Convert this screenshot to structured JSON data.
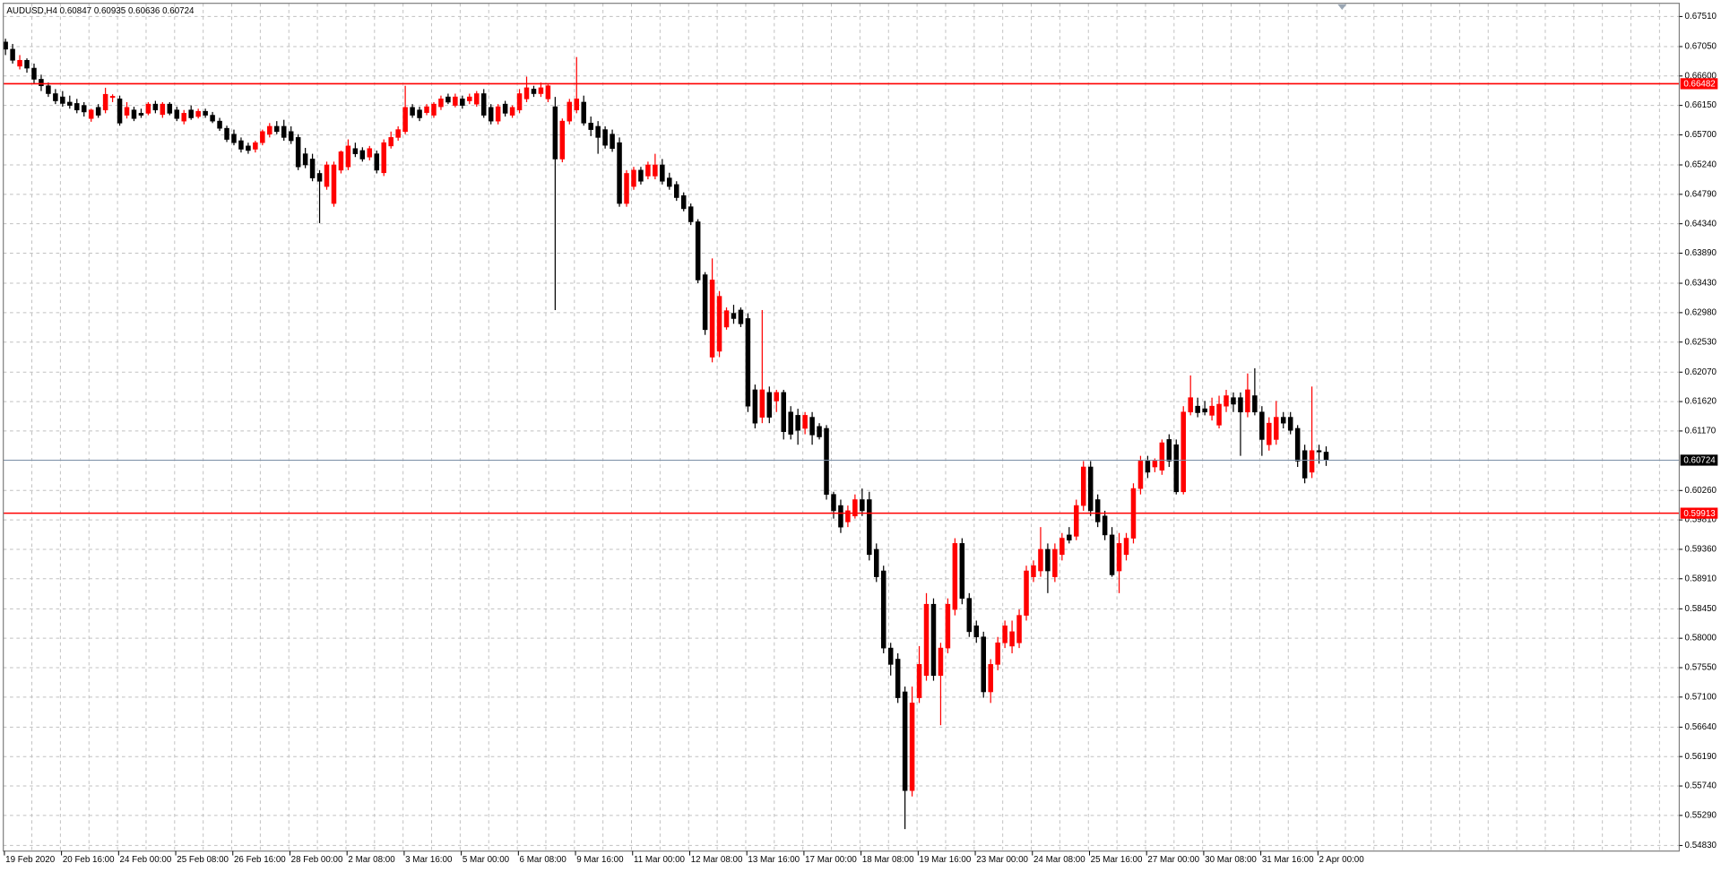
{
  "chart_data": {
    "type": "candlestick",
    "title": "AUDUSD,H4  0.60847 0.60935 0.60636 0.60724",
    "categories": [
      "19 Feb 2020",
      null,
      null,
      null,
      null,
      null,
      null,
      null,
      "20 Feb 16:00",
      null,
      null,
      null,
      null,
      null,
      null,
      null,
      "24 Feb 00:00",
      null,
      null,
      null,
      null,
      null,
      null,
      null,
      "25 Feb 08:00",
      null,
      null,
      null,
      null,
      null,
      null,
      null,
      "26 Feb 16:00",
      null,
      null,
      null,
      null,
      null,
      null,
      null,
      "28 Feb 00:00",
      null,
      null,
      null,
      null,
      null,
      null,
      null,
      "2 Mar 08:00",
      null,
      null,
      null,
      null,
      null,
      null,
      null,
      "3 Mar 16:00",
      null,
      null,
      null,
      null,
      null,
      null,
      null,
      "5 Mar 00:00",
      null,
      null,
      null,
      null,
      null,
      null,
      null,
      "6 Mar 08:00",
      null,
      null,
      null,
      null,
      null,
      null,
      null,
      "9 Mar 16:00",
      null,
      null,
      null,
      null,
      null,
      null,
      null,
      "11 Mar 00:00",
      null,
      null,
      null,
      null,
      null,
      null,
      null,
      "12 Mar 08:00",
      null,
      null,
      null,
      null,
      null,
      null,
      null,
      "13 Mar 16:00",
      null,
      null,
      null,
      null,
      null,
      null,
      null,
      "17 Mar 00:00",
      null,
      null,
      null,
      null,
      null,
      null,
      null,
      "18 Mar 08:00",
      null,
      null,
      null,
      null,
      null,
      null,
      null,
      "19 Mar 16:00",
      null,
      null,
      null,
      null,
      null,
      null,
      null,
      "23 Mar 00:00",
      null,
      null,
      null,
      null,
      null,
      null,
      null,
      "24 Mar 08:00",
      null,
      null,
      null,
      null,
      null,
      null,
      null,
      "25 Mar 16:00",
      null,
      null,
      null,
      null,
      null,
      null,
      null,
      "27 Mar 00:00",
      null,
      null,
      null,
      null,
      null,
      null,
      null,
      "30 Mar 08:00",
      null,
      null,
      null,
      null,
      null,
      null,
      null,
      "31 Mar 16:00",
      null,
      null,
      null,
      null,
      null,
      null,
      null,
      "2 Apr 00:00",
      null
    ],
    "ohlc": [
      [
        0.6712,
        0.6717,
        0.6692,
        0.6701
      ],
      [
        0.6701,
        0.6709,
        0.6679,
        0.6684
      ],
      [
        0.6675,
        0.6692,
        0.667,
        0.6684
      ],
      [
        0.6684,
        0.6687,
        0.6665,
        0.6672
      ],
      [
        0.6672,
        0.6679,
        0.6648,
        0.6655
      ],
      [
        0.6655,
        0.6662,
        0.6637,
        0.6645
      ],
      [
        0.6645,
        0.665,
        0.6628,
        0.6633
      ],
      [
        0.6633,
        0.664,
        0.6617,
        0.6622
      ],
      [
        0.6628,
        0.6637,
        0.6613,
        0.6618
      ],
      [
        0.662,
        0.663,
        0.661,
        0.6615
      ],
      [
        0.6618,
        0.6625,
        0.6603,
        0.6608
      ],
      [
        0.6615,
        0.662,
        0.6598,
        0.6605
      ],
      [
        0.6595,
        0.661,
        0.659,
        0.6608
      ],
      [
        0.6612,
        0.6617,
        0.6596,
        0.66
      ],
      [
        0.6608,
        0.6642,
        0.6603,
        0.6632
      ],
      [
        0.6627,
        0.6632,
        0.662,
        0.6629
      ],
      [
        0.6625,
        0.663,
        0.6584,
        0.6588
      ],
      [
        0.66,
        0.662,
        0.6595,
        0.6612
      ],
      [
        0.6608,
        0.6613,
        0.6591,
        0.6595
      ],
      [
        0.6603,
        0.661,
        0.6596,
        0.66
      ],
      [
        0.6603,
        0.662,
        0.66,
        0.6617
      ],
      [
        0.6617,
        0.6622,
        0.6603,
        0.6608
      ],
      [
        0.6601,
        0.662,
        0.6596,
        0.6617
      ],
      [
        0.6617,
        0.662,
        0.66,
        0.6603
      ],
      [
        0.6608,
        0.6613,
        0.6591,
        0.6595
      ],
      [
        0.6591,
        0.6608,
        0.6586,
        0.6603
      ],
      [
        0.6608,
        0.6615,
        0.6593,
        0.6596
      ],
      [
        0.6598,
        0.661,
        0.6595,
        0.6606
      ],
      [
        0.6606,
        0.661,
        0.6596,
        0.66
      ],
      [
        0.66,
        0.6605,
        0.6588,
        0.6591
      ],
      [
        0.6591,
        0.6596,
        0.6576,
        0.658
      ],
      [
        0.658,
        0.6584,
        0.6559,
        0.6563
      ],
      [
        0.6571,
        0.6578,
        0.6554,
        0.6558
      ],
      [
        0.6561,
        0.6566,
        0.6543,
        0.6548
      ],
      [
        0.6553,
        0.6558,
        0.6541,
        0.6546
      ],
      [
        0.6548,
        0.6561,
        0.6543,
        0.6558
      ],
      [
        0.6558,
        0.6578,
        0.6554,
        0.6575
      ],
      [
        0.6571,
        0.6588,
        0.6566,
        0.6583
      ],
      [
        0.6583,
        0.6591,
        0.6571,
        0.6575
      ],
      [
        0.6583,
        0.6593,
        0.6561,
        0.6566
      ],
      [
        0.6575,
        0.6583,
        0.6556,
        0.6561
      ],
      [
        0.6566,
        0.6571,
        0.6516,
        0.6521
      ],
      [
        0.6541,
        0.655,
        0.6519,
        0.6524
      ],
      [
        0.6533,
        0.6541,
        0.6499,
        0.6504
      ],
      [
        0.6511,
        0.6516,
        0.6435,
        0.6499
      ],
      [
        0.6491,
        0.6529,
        0.6486,
        0.6524
      ],
      [
        0.6465,
        0.6529,
        0.646,
        0.6524
      ],
      [
        0.6516,
        0.6546,
        0.6511,
        0.6544
      ],
      [
        0.6521,
        0.6563,
        0.6516,
        0.6553
      ],
      [
        0.6549,
        0.6558,
        0.6536,
        0.6541
      ],
      [
        0.6546,
        0.6551,
        0.6529,
        0.6533
      ],
      [
        0.6536,
        0.6553,
        0.6531,
        0.6549
      ],
      [
        0.6541,
        0.6546,
        0.6511,
        0.6516
      ],
      [
        0.6512,
        0.6563,
        0.6507,
        0.6558
      ],
      [
        0.6553,
        0.6575,
        0.6549,
        0.6566
      ],
      [
        0.6566,
        0.6583,
        0.6561,
        0.6578
      ],
      [
        0.6575,
        0.6645,
        0.6571,
        0.6612
      ],
      [
        0.6612,
        0.6617,
        0.6596,
        0.66
      ],
      [
        0.6608,
        0.6613,
        0.6591,
        0.6596
      ],
      [
        0.6604,
        0.6617,
        0.66,
        0.6613
      ],
      [
        0.66,
        0.662,
        0.6596,
        0.6617
      ],
      [
        0.6613,
        0.663,
        0.6608,
        0.6625
      ],
      [
        0.6628,
        0.6633,
        0.6617,
        0.662
      ],
      [
        0.6615,
        0.6633,
        0.6612,
        0.6628
      ],
      [
        0.6625,
        0.663,
        0.661,
        0.6615
      ],
      [
        0.6622,
        0.6633,
        0.6617,
        0.6628
      ],
      [
        0.6617,
        0.6637,
        0.6613,
        0.6633
      ],
      [
        0.6633,
        0.664,
        0.6596,
        0.66
      ],
      [
        0.6612,
        0.6617,
        0.6586,
        0.6591
      ],
      [
        0.6591,
        0.6617,
        0.6586,
        0.6613
      ],
      [
        0.6617,
        0.6622,
        0.6598,
        0.6603
      ],
      [
        0.66,
        0.6615,
        0.6596,
        0.6612
      ],
      [
        0.6608,
        0.664,
        0.6603,
        0.6633
      ],
      [
        0.6625,
        0.6659,
        0.662,
        0.6642
      ],
      [
        0.664,
        0.6645,
        0.6628,
        0.6633
      ],
      [
        0.6633,
        0.665,
        0.6628,
        0.6642
      ],
      [
        0.6625,
        0.6647,
        0.662,
        0.6645
      ],
      [
        0.6613,
        0.6628,
        0.6302,
        0.6533
      ],
      [
        0.6533,
        0.6595,
        0.6528,
        0.6591
      ],
      [
        0.6591,
        0.6625,
        0.6586,
        0.662
      ],
      [
        0.6608,
        0.6689,
        0.6603,
        0.6625
      ],
      [
        0.662,
        0.663,
        0.6584,
        0.6588
      ],
      [
        0.6588,
        0.6598,
        0.6568,
        0.6578
      ],
      [
        0.6583,
        0.6591,
        0.6541,
        0.6566
      ],
      [
        0.6578,
        0.6583,
        0.6549,
        0.6554
      ],
      [
        0.6571,
        0.6578,
        0.6544,
        0.6549
      ],
      [
        0.6558,
        0.6566,
        0.646,
        0.6465
      ],
      [
        0.6465,
        0.6516,
        0.646,
        0.6511
      ],
      [
        0.6491,
        0.6521,
        0.6486,
        0.6516
      ],
      [
        0.6516,
        0.6521,
        0.6494,
        0.6499
      ],
      [
        0.6507,
        0.6529,
        0.6502,
        0.6524
      ],
      [
        0.6507,
        0.6541,
        0.6502,
        0.6524
      ],
      [
        0.6524,
        0.6533,
        0.6494,
        0.6499
      ],
      [
        0.6504,
        0.6512,
        0.6486,
        0.6491
      ],
      [
        0.6494,
        0.6499,
        0.6469,
        0.6474
      ],
      [
        0.6477,
        0.6482,
        0.6453,
        0.6457
      ],
      [
        0.646,
        0.6465,
        0.6432,
        0.6437
      ],
      [
        0.6437,
        0.6441,
        0.6343,
        0.6348
      ],
      [
        0.6356,
        0.636,
        0.6264,
        0.6272
      ],
      [
        0.623,
        0.6381,
        0.6222,
        0.6348
      ],
      [
        0.6239,
        0.6331,
        0.623,
        0.6323
      ],
      [
        0.6276,
        0.6306,
        0.6272,
        0.6301
      ],
      [
        0.6297,
        0.631,
        0.6281,
        0.6289
      ],
      [
        0.6302,
        0.6306,
        0.6276,
        0.6281
      ],
      [
        0.6289,
        0.6297,
        0.6146,
        0.6155
      ],
      [
        0.618,
        0.6188,
        0.6121,
        0.6129
      ],
      [
        0.6138,
        0.6302,
        0.6129,
        0.618
      ],
      [
        0.6176,
        0.6185,
        0.6129,
        0.6138
      ],
      [
        0.6163,
        0.618,
        0.6146,
        0.6176
      ],
      [
        0.6176,
        0.618,
        0.6104,
        0.6116
      ],
      [
        0.6146,
        0.6155,
        0.6104,
        0.6112
      ],
      [
        0.6141,
        0.6151,
        0.6096,
        0.6118
      ],
      [
        0.6121,
        0.6146,
        0.6112,
        0.6141
      ],
      [
        0.6138,
        0.6146,
        0.6096,
        0.6111
      ],
      [
        0.6124,
        0.6129,
        0.6104,
        0.6108
      ],
      [
        0.6121,
        0.6126,
        0.6012,
        0.602
      ],
      [
        0.602,
        0.6024,
        0.5983,
        0.5995
      ],
      [
        0.6003,
        0.6012,
        0.5961,
        0.597
      ],
      [
        0.5978,
        0.6003,
        0.597,
        0.5995
      ],
      [
        0.5987,
        0.602,
        0.5983,
        0.6012
      ],
      [
        0.6012,
        0.6029,
        0.5987,
        0.5995
      ],
      [
        0.6012,
        0.6024,
        0.5919,
        0.5928
      ],
      [
        0.5936,
        0.5945,
        0.5886,
        0.5894
      ],
      [
        0.5903,
        0.5911,
        0.5777,
        0.5785
      ],
      [
        0.5785,
        0.5793,
        0.5743,
        0.576
      ],
      [
        0.5768,
        0.5777,
        0.5701,
        0.5709
      ],
      [
        0.5718,
        0.5726,
        0.5508,
        0.5567
      ],
      [
        0.5567,
        0.5726,
        0.5558,
        0.5701
      ],
      [
        0.5709,
        0.5788,
        0.5701,
        0.576
      ],
      [
        0.5743,
        0.5869,
        0.5735,
        0.5852
      ],
      [
        0.5852,
        0.5861,
        0.5735,
        0.5743
      ],
      [
        0.5743,
        0.5793,
        0.5667,
        0.5785
      ],
      [
        0.5785,
        0.5861,
        0.5777,
        0.5852
      ],
      [
        0.5844,
        0.5953,
        0.5835,
        0.5945
      ],
      [
        0.5945,
        0.5953,
        0.5852,
        0.5861
      ],
      [
        0.5861,
        0.5869,
        0.5802,
        0.581
      ],
      [
        0.5819,
        0.5827,
        0.5793,
        0.5802
      ],
      [
        0.5802,
        0.581,
        0.5709,
        0.5718
      ],
      [
        0.5718,
        0.5768,
        0.5701,
        0.576
      ],
      [
        0.576,
        0.5802,
        0.5751,
        0.5793
      ],
      [
        0.5793,
        0.5827,
        0.5785,
        0.5819
      ],
      [
        0.5788,
        0.5827,
        0.5777,
        0.581
      ],
      [
        0.5793,
        0.5844,
        0.5785,
        0.5835
      ],
      [
        0.5835,
        0.5911,
        0.5827,
        0.5903
      ],
      [
        0.5894,
        0.5919,
        0.5886,
        0.5911
      ],
      [
        0.5903,
        0.597,
        0.5894,
        0.5936
      ],
      [
        0.5936,
        0.5945,
        0.5869,
        0.5903
      ],
      [
        0.5894,
        0.5945,
        0.5886,
        0.5936
      ],
      [
        0.5928,
        0.5961,
        0.5919,
        0.5953
      ],
      [
        0.5958,
        0.597,
        0.5945,
        0.595
      ],
      [
        0.5956,
        0.6012,
        0.595,
        0.6003
      ],
      [
        0.6003,
        0.6071,
        0.5995,
        0.6062
      ],
      [
        0.6062,
        0.6071,
        0.5987,
        0.5995
      ],
      [
        0.6012,
        0.602,
        0.597,
        0.5978
      ],
      [
        0.5987,
        0.5995,
        0.595,
        0.5958
      ],
      [
        0.5958,
        0.597,
        0.5894,
        0.5897
      ],
      [
        0.5903,
        0.5961,
        0.5869,
        0.5945
      ],
      [
        0.5928,
        0.5961,
        0.5919,
        0.5953
      ],
      [
        0.5953,
        0.6037,
        0.5945,
        0.6029
      ],
      [
        0.6029,
        0.6079,
        0.602,
        0.6071
      ],
      [
        0.6071,
        0.6079,
        0.6045,
        0.6054
      ],
      [
        0.6062,
        0.6075,
        0.6054,
        0.6071
      ],
      [
        0.6057,
        0.6104,
        0.605,
        0.6099
      ],
      [
        0.6104,
        0.6112,
        0.6062,
        0.6071
      ],
      [
        0.6096,
        0.6104,
        0.602,
        0.6024
      ],
      [
        0.6024,
        0.6155,
        0.602,
        0.6146
      ],
      [
        0.6146,
        0.6202,
        0.6141,
        0.6168
      ],
      [
        0.6155,
        0.6168,
        0.6138,
        0.6145
      ],
      [
        0.6151,
        0.6163,
        0.6141,
        0.6146
      ],
      [
        0.6141,
        0.6168,
        0.6133,
        0.6155
      ],
      [
        0.6126,
        0.6171,
        0.6121,
        0.6158
      ],
      [
        0.6155,
        0.618,
        0.6146,
        0.6171
      ],
      [
        0.6168,
        0.6176,
        0.6146,
        0.6158
      ],
      [
        0.6168,
        0.6176,
        0.6079,
        0.6146
      ],
      [
        0.6146,
        0.6205,
        0.6138,
        0.618
      ],
      [
        0.6171,
        0.6213,
        0.6141,
        0.6146
      ],
      [
        0.6146,
        0.6155,
        0.6079,
        0.6104
      ],
      [
        0.6096,
        0.6138,
        0.6087,
        0.6129
      ],
      [
        0.6104,
        0.6163,
        0.6096,
        0.6138
      ],
      [
        0.6138,
        0.6146,
        0.6121,
        0.6129
      ],
      [
        0.6138,
        0.6146,
        0.6112,
        0.6118
      ],
      [
        0.6121,
        0.6126,
        0.6062,
        0.6071
      ],
      [
        0.6087,
        0.6096,
        0.6037,
        0.6045
      ],
      [
        0.6054,
        0.6185,
        0.6045,
        0.6087
      ],
      [
        0.6087,
        0.6096,
        0.6067,
        0.6085
      ],
      [
        0.60847,
        0.60935,
        0.60636,
        0.60724
      ]
    ],
    "up_color": "#ff0000",
    "down_color": "#000000",
    "ylim": [
      0.54745,
      0.67712
    ],
    "yticks": [
      {
        "value": 0.6751,
        "label": "0.67510"
      },
      {
        "value": 0.6705,
        "label": "0.67050"
      },
      {
        "value": 0.666,
        "label": "0.66600"
      },
      {
        "value": 0.6615,
        "label": "0.66150"
      },
      {
        "value": 0.657,
        "label": "0.65700"
      },
      {
        "value": 0.6524,
        "label": "0.65240"
      },
      {
        "value": 0.6479,
        "label": "0.64790"
      },
      {
        "value": 0.6434,
        "label": "0.64340"
      },
      {
        "value": 0.6389,
        "label": "0.63890"
      },
      {
        "value": 0.6343,
        "label": "0.63430"
      },
      {
        "value": 0.6298,
        "label": "0.62980"
      },
      {
        "value": 0.6253,
        "label": "0.62530"
      },
      {
        "value": 0.6207,
        "label": "0.62070"
      },
      {
        "value": 0.6162,
        "label": "0.61620"
      },
      {
        "value": 0.6117,
        "label": "0.61170"
      },
      {
        "value": 0.6026,
        "label": "0.60260"
      },
      {
        "value": 0.5981,
        "label": "0.59810"
      },
      {
        "value": 0.5936,
        "label": "0.59360"
      },
      {
        "value": 0.5891,
        "label": "0.58910"
      },
      {
        "value": 0.5845,
        "label": "0.58450"
      },
      {
        "value": 0.58,
        "label": "0.58000"
      },
      {
        "value": 0.5755,
        "label": "0.57550"
      },
      {
        "value": 0.571,
        "label": "0.57100"
      },
      {
        "value": 0.5664,
        "label": "0.56640"
      },
      {
        "value": 0.5619,
        "label": "0.56190"
      },
      {
        "value": 0.5574,
        "label": "0.55740"
      },
      {
        "value": 0.5529,
        "label": "0.55290"
      },
      {
        "value": 0.5483,
        "label": "0.54830"
      }
    ],
    "grid": true,
    "levels": [
      {
        "value": 0.66482,
        "color": "#ff0000"
      },
      {
        "value": 0.59913,
        "color": "#ff0000"
      },
      {
        "value": 0.60724,
        "color": "#000000"
      }
    ]
  }
}
